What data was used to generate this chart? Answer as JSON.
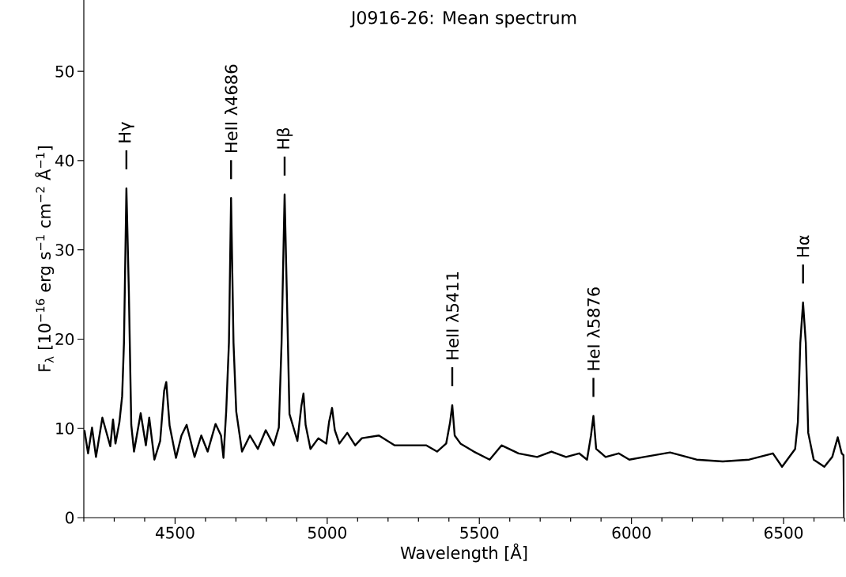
{
  "chart_data": {
    "type": "line",
    "title": "J0916-26: Mean spectrum",
    "xlabel": "Wavelength [Å]",
    "ylabel": "F$_{λ}$ [10$^{−16}$ erg s$^{−1}$ cm$^{−2}$ Å$^{−1}$]",
    "color": "#000000",
    "x": [
      4202,
      4214,
      4227,
      4240,
      4261,
      4287,
      4296,
      4304,
      4317,
      4326,
      4332,
      4340,
      4348,
      4356,
      4365,
      4387,
      4404,
      4415,
      4432,
      4451,
      4464,
      4471,
      4482,
      4503,
      4521,
      4538,
      4564,
      4586,
      4607,
      4633,
      4651,
      4659,
      4668,
      4677,
      4684,
      4692,
      4701,
      4720,
      4746,
      4772,
      4798,
      4824,
      4841,
      4850,
      4860,
      4869,
      4876,
      4902,
      4915,
      4922,
      4929,
      4945,
      4971,
      4997,
      5006,
      5016,
      5025,
      5040,
      5066,
      5092,
      5114,
      5170,
      5222,
      5274,
      5326,
      5361,
      5391,
      5404,
      5411,
      5419,
      5438,
      5482,
      5534,
      5573,
      5629,
      5690,
      5737,
      5785,
      5828,
      5854,
      5867,
      5875,
      5884,
      5915,
      5958,
      5993,
      6041,
      6127,
      6214,
      6300,
      6387,
      6465,
      6495,
      6538,
      6547,
      6555,
      6564,
      6573,
      6581,
      6599,
      6634,
      6660,
      6678,
      6691,
      6697,
      6699
    ],
    "values": [
      9.8,
      7.2,
      10.1,
      6.8,
      11.2,
      8.0,
      11.0,
      8.3,
      10.7,
      13.6,
      19.6,
      36.9,
      25.4,
      10.4,
      7.4,
      11.7,
      8.1,
      11.2,
      6.5,
      8.6,
      14.2,
      15.2,
      10.3,
      6.7,
      9.2,
      10.4,
      6.8,
      9.2,
      7.4,
      10.5,
      9.2,
      6.7,
      11.9,
      19.6,
      35.8,
      19.6,
      11.9,
      7.4,
      9.2,
      7.7,
      9.8,
      8.1,
      10.1,
      19.6,
      36.2,
      22.5,
      11.6,
      8.6,
      12.5,
      13.9,
      10.4,
      7.7,
      8.9,
      8.3,
      10.7,
      12.3,
      9.8,
      8.3,
      9.5,
      8.1,
      8.9,
      9.2,
      8.1,
      8.1,
      8.1,
      7.4,
      8.3,
      10.7,
      12.6,
      9.2,
      8.3,
      7.4,
      6.5,
      8.1,
      7.2,
      6.8,
      7.4,
      6.8,
      7.2,
      6.5,
      9.2,
      11.4,
      7.7,
      6.8,
      7.2,
      6.5,
      6.8,
      7.3,
      6.5,
      6.3,
      6.5,
      7.2,
      5.7,
      7.7,
      10.7,
      19.6,
      24.1,
      19.6,
      9.5,
      6.5,
      5.7,
      6.8,
      9.0,
      7.2,
      7.0,
      0
    ],
    "xlim": [
      4200,
      6700
    ],
    "ylim": [
      0,
      58
    ],
    "xticks": [
      {
        "value": 4200,
        "label": null
      },
      {
        "value": 4300,
        "label": null
      },
      {
        "value": 4400,
        "label": null
      },
      4500,
      {
        "value": 4600,
        "label": null
      },
      {
        "value": 4700,
        "label": null
      },
      {
        "value": 4800,
        "label": null
      },
      {
        "value": 4900,
        "label": null
      },
      5000,
      {
        "value": 5100,
        "label": null
      },
      {
        "value": 5200,
        "label": null
      },
      {
        "value": 5300,
        "label": null
      },
      {
        "value": 5400,
        "label": null
      },
      5500,
      {
        "value": 5600,
        "label": null
      },
      {
        "value": 5700,
        "label": null
      },
      {
        "value": 5800,
        "label": null
      },
      {
        "value": 5900,
        "label": null
      },
      6000,
      {
        "value": 6100,
        "label": null
      },
      {
        "value": 6200,
        "label": null
      },
      {
        "value": 6300,
        "label": null
      },
      {
        "value": 6400,
        "label": null
      },
      6500,
      {
        "value": 6600,
        "label": null
      },
      {
        "value": 6700,
        "label": null
      }
    ],
    "yticks": [
      0,
      10,
      20,
      30,
      40,
      50
    ],
    "annotations": [
      {
        "text": "Hγ",
        "x": 4340,
        "y": 36.9
      },
      {
        "text": "HeII λ4686",
        "x": 4684,
        "y": 35.8
      },
      {
        "text": "Hβ",
        "x": 4860,
        "y": 36.2
      },
      {
        "text": "HeII λ5411",
        "x": 5411,
        "y": 12.6
      },
      {
        "text": "HeI λ5876",
        "x": 5875,
        "y": 11.4
      },
      {
        "text": "Hα",
        "x": 6564,
        "y": 24.1
      }
    ]
  }
}
